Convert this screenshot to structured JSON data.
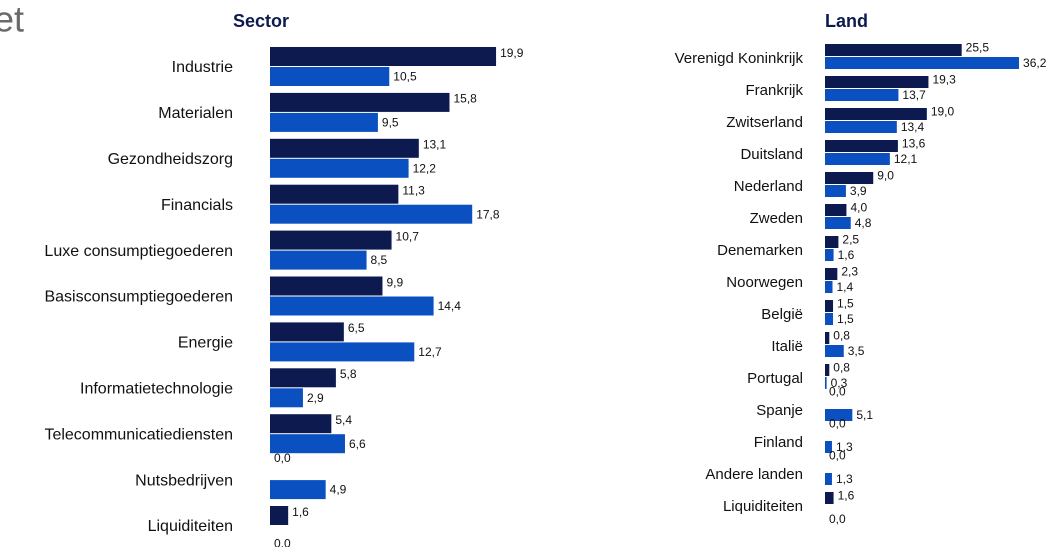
{
  "header": {
    "title": "et"
  },
  "chart_data": [
    {
      "type": "bar",
      "orientation": "horizontal",
      "title": "Sector",
      "categories": [
        "Industrie",
        "Materialen",
        "Gezondheidszorg",
        "Financials",
        "Luxe consumptiegoederen",
        "Basisconsumptiegoederen",
        "Energie",
        "Informatietechnologie",
        "Telecommunicatiediensten",
        "Nutsbedrijven",
        "Liquiditeiten"
      ],
      "series": [
        {
          "color": "#0c1a50",
          "values": [
            19.9,
            15.8,
            13.1,
            11.3,
            10.7,
            9.9,
            6.5,
            5.8,
            5.4,
            0.0,
            1.6
          ],
          "value_labels": [
            "19,9",
            "15,8",
            "13,1",
            "11,3",
            "10,7",
            "9,9",
            "6,5",
            "5,8",
            "5,4",
            "0,0",
            "1,6"
          ]
        },
        {
          "color": "#0b50c0",
          "values": [
            10.5,
            9.5,
            12.2,
            17.8,
            8.5,
            14.4,
            12.7,
            2.9,
            6.6,
            4.9,
            0.0
          ],
          "value_labels": [
            "10,5",
            "9,5",
            "12,2",
            "17,8",
            "8,5",
            "14,4",
            "12,7",
            "2,9",
            "6,6",
            "4,9",
            "0,0"
          ]
        }
      ]
    },
    {
      "type": "bar",
      "orientation": "horizontal",
      "title": "Land",
      "categories": [
        "Verenigd Koninkrijk",
        "Frankrijk",
        "Zwitserland",
        "Duitsland",
        "Nederland",
        "Zweden",
        "Denemarken",
        "Noorwegen",
        "België",
        "Italië",
        "Portugal",
        "Spanje",
        "Finland",
        "Andere landen",
        "Liquiditeiten"
      ],
      "series": [
        {
          "color": "#0c1a50",
          "values": [
            25.5,
            19.3,
            19.0,
            13.6,
            9.0,
            4.0,
            2.5,
            2.3,
            1.5,
            0.8,
            0.8,
            0.0,
            0.0,
            0.0,
            1.6
          ],
          "value_labels": [
            "25,5",
            "19,3",
            "19,0",
            "13,6",
            "9,0",
            "4,0",
            "2,5",
            "2,3",
            "1,5",
            "0,8",
            "0,8",
            "0,0",
            "0,0",
            "0,0",
            "1,6"
          ]
        },
        {
          "color": "#0b50c0",
          "values": [
            36.2,
            13.7,
            13.4,
            12.1,
            3.9,
            4.8,
            1.6,
            1.4,
            1.5,
            3.5,
            0.3,
            5.1,
            1.3,
            1.3,
            0.0
          ],
          "value_labels": [
            "36,2",
            "13,7",
            "13,4",
            "12,1",
            "3,9",
            "4,8",
            "1,6",
            "1,4",
            "1,5",
            "3,5",
            "0,3",
            "5,1",
            "1,3",
            "1,3",
            "0,0"
          ]
        }
      ]
    }
  ]
}
